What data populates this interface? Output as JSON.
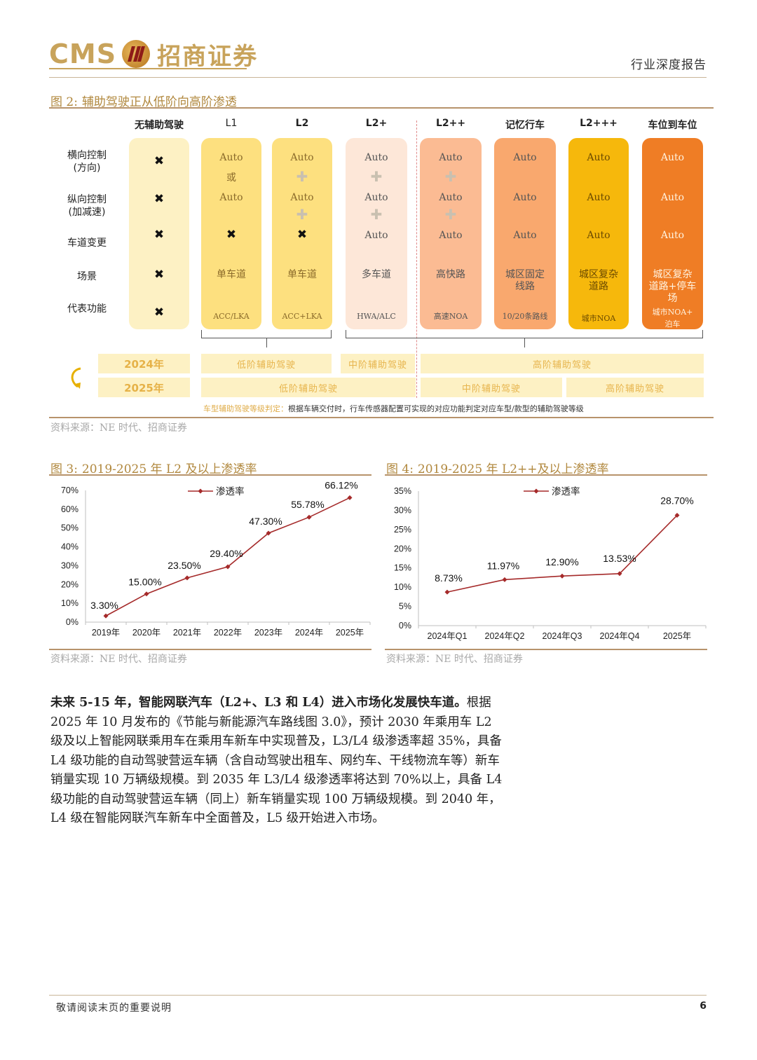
{
  "header": {
    "logo_latin": "CMS",
    "logo_cn": "招商证券",
    "report_type": "行业深度报告"
  },
  "fig2": {
    "title_prefix": "图 2:",
    "title": "辅助驾驶正从低阶向高阶渗透",
    "columns": [
      "无辅助驾驶",
      "L1",
      "L2",
      "L2+",
      "L2++",
      "记忆行车",
      "L2+++",
      "车位到车位"
    ],
    "rows": [
      "横向控制\n(方向)",
      "纵向控制\n(加减速)",
      "车道变更",
      "场景",
      "代表功能"
    ],
    "auto": "Auto",
    "or": "或",
    "plus": "✚",
    "cross": "✖",
    "scenes": {
      "single_lane": "单车道",
      "multi_lane": "多车道",
      "highway": "高快路",
      "urban_fixed": "城区固定\n线路",
      "urban_complex": "城区复杂\n道路",
      "urban_complex_parking": "城区复杂\n道路+停车\n场"
    },
    "functions": [
      "ACC/LKA",
      "ACC+LKA",
      "HWA/ALC",
      "高速NOA",
      "10/20条路线",
      "城市NOA",
      "城市NOA+\n泊车"
    ],
    "years": [
      "2024年",
      "2025年"
    ],
    "bands_2024": [
      "低阶辅助驾驶",
      "中阶辅助驾驶",
      "高阶辅助驾驶"
    ],
    "bands_2025": [
      "低阶辅助驾驶",
      "中阶辅助驾驶",
      "高阶辅助驾驶"
    ],
    "note_label": "车型辅助驾驶等级判定：",
    "note_text": "根据车辆交付时，行车传感器配置可实现的对应功能判定对应车型/款型的辅助驾驶等级",
    "colors": [
      "#fdf1c4",
      "#fde07f",
      "#fde07f",
      "#fde7d8",
      "#fbbb93",
      "#f9a86e",
      "#f6b80c",
      "#ef7d25"
    ]
  },
  "source_text": "资料来源：NE 时代、招商证券",
  "fig3": {
    "title_prefix": "图 3:",
    "title": "2019-2025 年 L2 及以上渗透率",
    "chart_data": {
      "type": "line",
      "categories": [
        "2019年",
        "2020年",
        "2021年",
        "2022年",
        "2023年",
        "2024年",
        "2025年"
      ],
      "series": [
        {
          "name": "渗透率",
          "values": [
            3.3,
            15.0,
            23.5,
            29.4,
            47.3,
            55.78,
            66.12
          ]
        }
      ],
      "data_labels": [
        "3.30%",
        "15.00%",
        "23.50%",
        "29.40%",
        "47.30%",
        "55.78%",
        "66.12%"
      ],
      "yticks": [
        "0%",
        "10%",
        "20%",
        "30%",
        "40%",
        "50%",
        "60%",
        "70%"
      ],
      "ylim": [
        0,
        70
      ],
      "legend": "top",
      "color": "#a52a2a"
    }
  },
  "fig4": {
    "title_prefix": "图 4:",
    "title": "2019-2025 年 L2++及以上渗透率",
    "chart_data": {
      "type": "line",
      "categories": [
        "2024年Q1",
        "2024年Q2",
        "2024年Q3",
        "2024年Q4",
        "2025年"
      ],
      "series": [
        {
          "name": "渗透率",
          "values": [
            8.73,
            11.97,
            12.9,
            13.53,
            28.7
          ]
        }
      ],
      "data_labels": [
        "8.73%",
        "11.97%",
        "12.90%",
        "13.53%",
        "28.70%"
      ],
      "yticks": [
        "0%",
        "5%",
        "10%",
        "15%",
        "20%",
        "25%",
        "30%",
        "35%"
      ],
      "ylim": [
        0,
        35
      ],
      "legend": "top",
      "color": "#a52a2a"
    }
  },
  "body": {
    "lead": "未来 5-15 年，智能网联汽车（L2+、L3 和 L4）进入市场化发展快车道。",
    "text": "根据 2025 年 10 月发布的《节能与新能源汽车路线图 3.0》，预计 2030 年乘用车 L2 级及以上智能网联乘用车在乘用车新车中实现普及，L3/L4 级渗透率超 35%，具备 L4 级功能的自动驾驶营运车辆（含自动驾驶出租车、网约车、干线物流车等）新车销量实现 10 万辆级规模。到 2035 年 L3/L4 级渗透率将达到 70%以上，具备 L4 级功能的自动驾驶营运车辆（同上）新车销量实现 100 万辆级规模。到 2040 年，L4 级在智能网联汽车新车中全面普及，L5 级开始进入市场。"
  },
  "footer": {
    "disclaimer": "敬请阅读末页的重要说明",
    "page": "6"
  }
}
